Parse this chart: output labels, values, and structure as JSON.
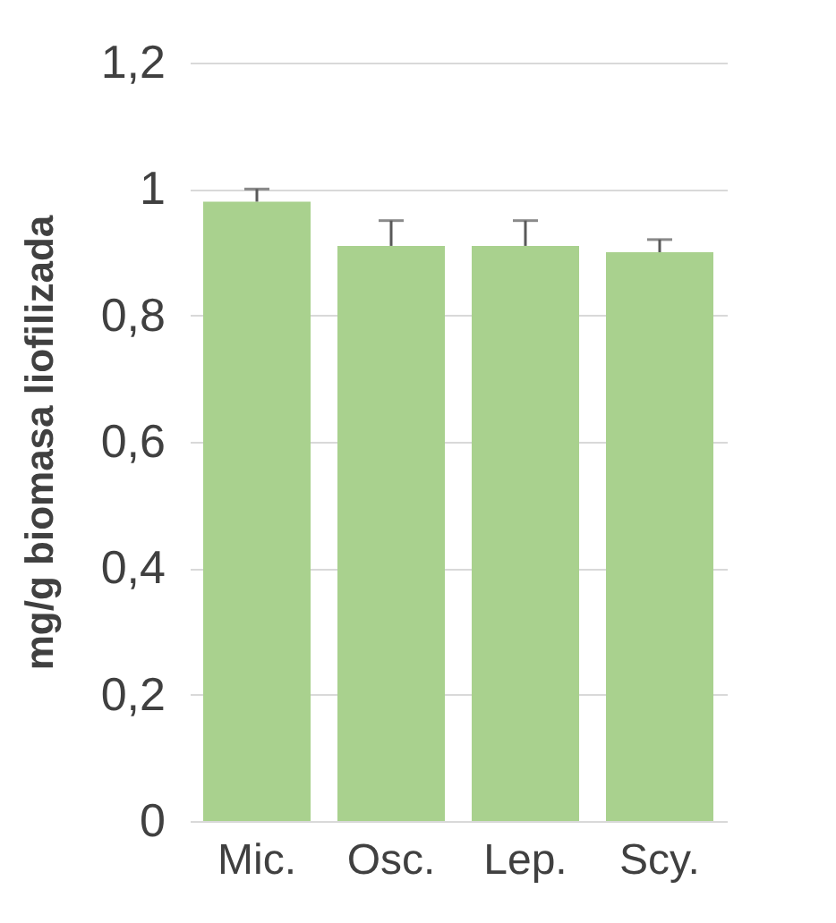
{
  "chart_data": {
    "type": "bar",
    "ylabel": "mg/g biomasa liofilizada",
    "categories": [
      "Mic.",
      "Osc.",
      "Lep.",
      "Scy."
    ],
    "values": [
      0.98,
      0.91,
      0.91,
      0.9
    ],
    "errors": [
      [
        0.98,
        1.0
      ],
      [
        0.91,
        0.95
      ],
      [
        0.91,
        0.95
      ],
      [
        0.9,
        0.92
      ]
    ],
    "color": "#a9d18e",
    "ylim": [
      0,
      1.2
    ],
    "yticks": [
      {
        "value": 0,
        "label": "0"
      },
      {
        "value": 0.2,
        "label": "0,2"
      },
      {
        "value": 0.4,
        "label": "0,4"
      },
      {
        "value": 0.6,
        "label": "0,6"
      },
      {
        "value": 0.8,
        "label": "0,8"
      },
      {
        "value": 1,
        "label": "1"
      },
      {
        "value": 1.2,
        "label": "1,2"
      }
    ],
    "grid": "y"
  }
}
